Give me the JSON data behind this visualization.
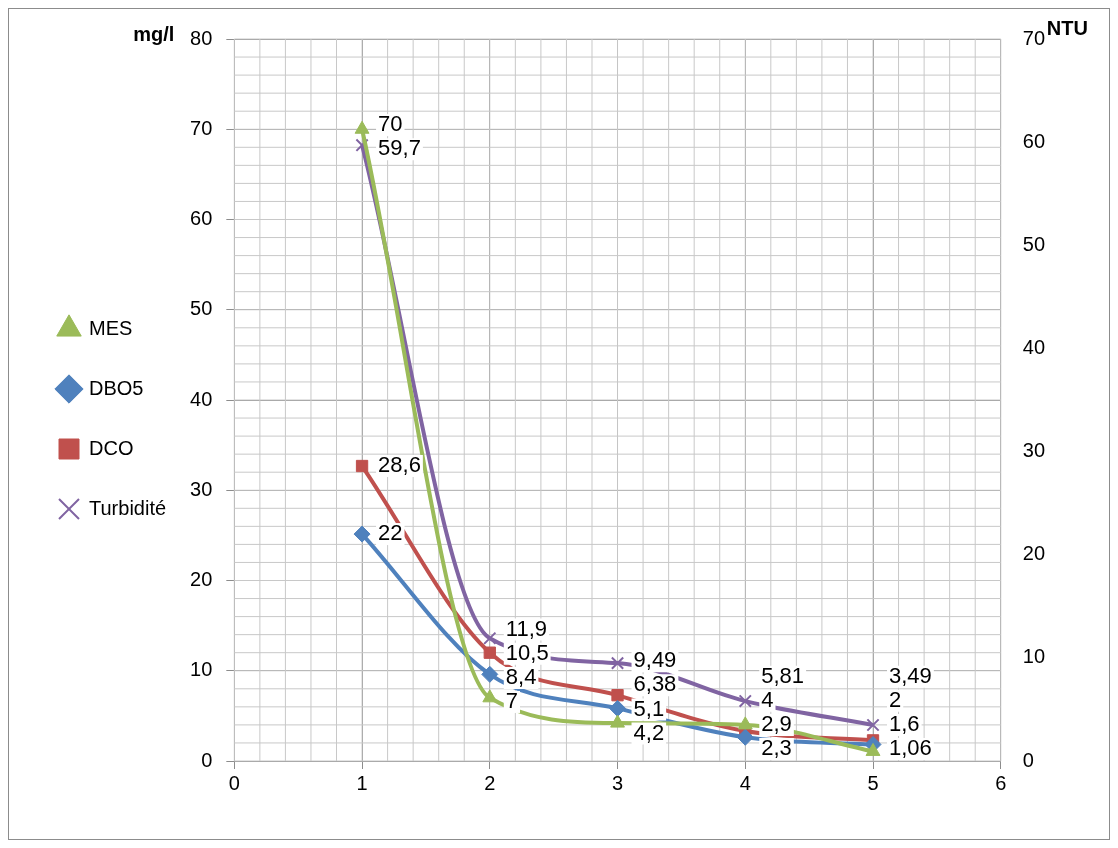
{
  "chart_data": {
    "type": "line",
    "ylabel": "mg/l",
    "y2label": "NTU",
    "x": [
      1,
      2,
      3,
      4,
      5
    ],
    "xlim": [
      0,
      6
    ],
    "xticks": [
      0,
      1,
      2,
      3,
      4,
      5,
      6
    ],
    "ylim": [
      0,
      80
    ],
    "yticks": [
      0,
      10,
      20,
      30,
      40,
      50,
      60,
      70,
      80
    ],
    "y2lim": [
      0,
      70
    ],
    "y2ticks": [
      0,
      10,
      20,
      30,
      40,
      50,
      60,
      70
    ],
    "grid": true,
    "legend": "left",
    "data_labels": true,
    "series": [
      {
        "name": "MES",
        "color": "#9bbb59",
        "marker": "triangle",
        "values": [
          70,
          7,
          4.2,
          4,
          1.06
        ],
        "value_labels": [
          "70",
          "7",
          "4,2",
          "4",
          "1,06"
        ]
      },
      {
        "name": "DBO5",
        "color": "#4f81bd",
        "marker": "diamond",
        "axis": "y2",
        "values": [
          22,
          8.4,
          5.1,
          2.3,
          1.6
        ],
        "value_labels": [
          "22",
          "8,4",
          "5,1",
          "2,3",
          "1,6"
        ]
      },
      {
        "name": "DCO",
        "color": "#c0504d",
        "marker": "square",
        "axis": "y2",
        "values": [
          28.6,
          10.5,
          6.38,
          2.9,
          2
        ],
        "value_labels": [
          "28,6",
          "10,5",
          "6,38",
          "2,9",
          "2"
        ]
      },
      {
        "name": "Turbidité",
        "color": "#8064a2",
        "marker": "cross",
        "axis": "y2",
        "values": [
          59.7,
          11.9,
          9.49,
          5.81,
          3.49
        ],
        "value_labels": [
          "59,7",
          "11,9",
          "9,49",
          "5,81",
          "3,49"
        ]
      }
    ]
  }
}
